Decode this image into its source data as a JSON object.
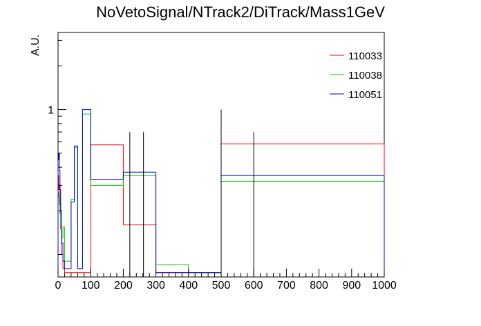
{
  "chart_data": {
    "type": "line",
    "title": "NoVetoSignal/NTrack2/DiTrack/Mass1GeV",
    "xlabel": "",
    "ylabel": "A.U.",
    "xlim": [
      0,
      1000
    ],
    "ylim": [
      0.07,
      3.4
    ],
    "y_scale": "log",
    "x_ticks": [
      "0",
      "100",
      "200",
      "300",
      "400",
      "500",
      "600",
      "700",
      "800",
      "900",
      "1000"
    ],
    "y_ticks": [
      "1"
    ],
    "legend_position": "top-right",
    "series": [
      {
        "name": "110033",
        "color": "#ff0000",
        "bins": [
          {
            "x0": 0,
            "x1": 2,
            "y": 0.35
          },
          {
            "x0": 2,
            "x1": 4,
            "y": 0.28
          },
          {
            "x0": 4,
            "x1": 6,
            "y": 0.3
          },
          {
            "x0": 6,
            "x1": 8,
            "y": 0.22
          },
          {
            "x0": 8,
            "x1": 10,
            "y": 0.15
          },
          {
            "x0": 10,
            "x1": 15,
            "y": 0.1
          },
          {
            "x0": 15,
            "x1": 20,
            "y": 0.08
          },
          {
            "x0": 20,
            "x1": 30,
            "y": 0.075
          },
          {
            "x0": 30,
            "x1": 40,
            "y": 0.075
          },
          {
            "x0": 40,
            "x1": 50,
            "y": 0.075
          },
          {
            "x0": 50,
            "x1": 60,
            "y": 0.075
          },
          {
            "x0": 60,
            "x1": 75,
            "y": 0.075
          },
          {
            "x0": 75,
            "x1": 100,
            "y": 0.075
          },
          {
            "x0": 100,
            "x1": 200,
            "y": 0.57
          },
          {
            "x0": 200,
            "x1": 300,
            "y": 0.16
          },
          {
            "x0": 300,
            "x1": 400,
            "y": 0.075
          },
          {
            "x0": 400,
            "x1": 500,
            "y": 0.075
          },
          {
            "x0": 500,
            "x1": 1000,
            "y": 0.58
          }
        ]
      },
      {
        "name": "110038",
        "color": "#00cc00",
        "bins": [
          {
            "x0": 0,
            "x1": 2,
            "y": 0.27
          },
          {
            "x0": 2,
            "x1": 4,
            "y": 0.25
          },
          {
            "x0": 4,
            "x1": 6,
            "y": 0.22
          },
          {
            "x0": 6,
            "x1": 8,
            "y": 0.19
          },
          {
            "x0": 8,
            "x1": 10,
            "y": 0.16
          },
          {
            "x0": 10,
            "x1": 15,
            "y": 0.13
          },
          {
            "x0": 15,
            "x1": 20,
            "y": 0.155
          },
          {
            "x0": 20,
            "x1": 30,
            "y": 0.09
          },
          {
            "x0": 30,
            "x1": 40,
            "y": 0.09
          },
          {
            "x0": 40,
            "x1": 50,
            "y": 0.24
          },
          {
            "x0": 50,
            "x1": 60,
            "y": 0.55
          },
          {
            "x0": 60,
            "x1": 75,
            "y": 0.08
          },
          {
            "x0": 75,
            "x1": 100,
            "y": 0.93
          },
          {
            "x0": 100,
            "x1": 200,
            "y": 0.3
          },
          {
            "x0": 200,
            "x1": 300,
            "y": 0.35
          },
          {
            "x0": 300,
            "x1": 400,
            "y": 0.085
          },
          {
            "x0": 400,
            "x1": 500,
            "y": 0.075
          },
          {
            "x0": 500,
            "x1": 1000,
            "y": 0.32
          }
        ]
      },
      {
        "name": "110051",
        "color": "#0000cc",
        "bins": [
          {
            "x0": 0,
            "x1": 2,
            "y": 0.45
          },
          {
            "x0": 2,
            "x1": 4,
            "y": 0.5
          },
          {
            "x0": 4,
            "x1": 6,
            "y": 0.38
          },
          {
            "x0": 6,
            "x1": 8,
            "y": 0.28
          },
          {
            "x0": 8,
            "x1": 10,
            "y": 0.2
          },
          {
            "x0": 10,
            "x1": 15,
            "y": 0.12
          },
          {
            "x0": 15,
            "x1": 20,
            "y": 0.09
          },
          {
            "x0": 20,
            "x1": 30,
            "y": 0.08
          },
          {
            "x0": 30,
            "x1": 40,
            "y": 0.08
          },
          {
            "x0": 40,
            "x1": 50,
            "y": 0.23
          },
          {
            "x0": 50,
            "x1": 60,
            "y": 0.56
          },
          {
            "x0": 60,
            "x1": 75,
            "y": 0.08
          },
          {
            "x0": 75,
            "x1": 100,
            "y": 1.0
          },
          {
            "x0": 100,
            "x1": 200,
            "y": 0.33
          },
          {
            "x0": 200,
            "x1": 300,
            "y": 0.37
          },
          {
            "x0": 300,
            "x1": 400,
            "y": 0.075
          },
          {
            "x0": 400,
            "x1": 500,
            "y": 0.075
          },
          {
            "x0": 500,
            "x1": 1000,
            "y": 0.35
          }
        ]
      }
    ],
    "error_bars": [
      {
        "x": 220,
        "ylow": 0.07,
        "yhigh": 0.7
      },
      {
        "x": 262,
        "ylow": 0.07,
        "yhigh": 0.7
      },
      {
        "x": 600,
        "ylow": 0.07,
        "yhigh": 0.7
      },
      {
        "x": 500,
        "ylow": 0.07,
        "yhigh": 1.0
      }
    ]
  }
}
